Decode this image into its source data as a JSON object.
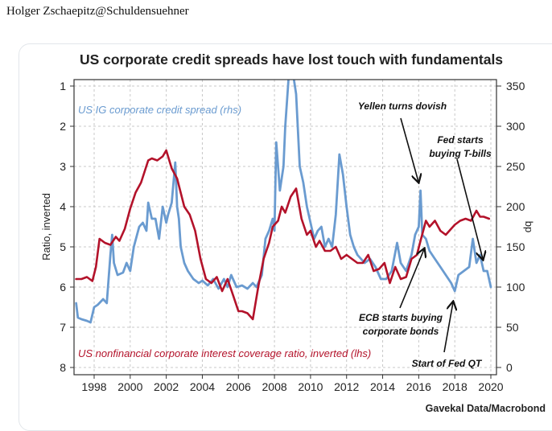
{
  "post": {
    "author": "Holger Zschaepitz@Schuldensuehner"
  },
  "chart_data": {
    "type": "line",
    "title": "US corporate credit spreads have lost touch with fundamentals",
    "xlabel": "",
    "ylabel_left": "Ratio, inverted",
    "ylabel_right": "bp",
    "xlim": [
      1996.9,
      2020.3
    ],
    "ylim_left": [
      1,
      8
    ],
    "ylim_left_inverted": true,
    "ylim_right": [
      0,
      350
    ],
    "x_ticks": [
      "1998",
      "2000",
      "2002",
      "2004",
      "2006",
      "2008",
      "2010",
      "2012",
      "2014",
      "2016",
      "2018",
      "2020"
    ],
    "y_left_ticks": [
      "1",
      "2",
      "3",
      "4",
      "5",
      "6",
      "7",
      "8"
    ],
    "y_right_ticks": [
      "0",
      "50",
      "100",
      "150",
      "200",
      "250",
      "300",
      "350"
    ],
    "grid": true,
    "colors": {
      "blue": "#6a9bd0",
      "red": "#b3122a"
    },
    "series": [
      {
        "name": "US IG corporate credit spread (rhs)",
        "axis": "right",
        "color": "#6a9bd0",
        "x": [
          1997.0,
          1997.1,
          1997.3,
          1997.6,
          1997.8,
          1998.0,
          1998.2,
          1998.5,
          1998.7,
          1998.9,
          1999.0,
          1999.1,
          1999.3,
          1999.6,
          1999.8,
          2000.0,
          2000.2,
          2000.5,
          2000.7,
          2000.9,
          2001.0,
          2001.2,
          2001.4,
          2001.6,
          2001.8,
          2002.0,
          2002.1,
          2002.3,
          2002.5,
          2002.6,
          2002.7,
          2002.8,
          2003.0,
          2003.2,
          2003.5,
          2003.8,
          2004.0,
          2004.3,
          2004.6,
          2004.9,
          2005.2,
          2005.4,
          2005.6,
          2005.9,
          2006.2,
          2006.5,
          2006.8,
          2007.0,
          2007.3,
          2007.5,
          2007.7,
          2007.9,
          2008.0,
          2008.1,
          2008.3,
          2008.5,
          2008.6,
          2008.8,
          2009.0,
          2009.2,
          2009.4,
          2009.6,
          2009.8,
          2010.0,
          2010.2,
          2010.4,
          2010.6,
          2010.8,
          2011.0,
          2011.2,
          2011.4,
          2011.6,
          2011.8,
          2012.0,
          2012.2,
          2012.4,
          2012.6,
          2012.8,
          2013.0,
          2013.3,
          2013.6,
          2013.9,
          2014.2,
          2014.5,
          2014.8,
          2015.0,
          2015.3,
          2015.6,
          2015.8,
          2016.0,
          2016.1,
          2016.2,
          2016.4,
          2016.6,
          2016.9,
          2017.2,
          2017.5,
          2017.8,
          2018.0,
          2018.2,
          2018.5,
          2018.8,
          2019.0,
          2019.2,
          2019.4,
          2019.6,
          2019.8,
          2020.0
        ],
        "values": [
          80,
          62,
          60,
          58,
          56,
          75,
          78,
          85,
          80,
          140,
          165,
          130,
          115,
          118,
          130,
          120,
          150,
          175,
          180,
          170,
          205,
          185,
          185,
          160,
          200,
          180,
          190,
          205,
          255,
          200,
          185,
          150,
          130,
          120,
          110,
          105,
          108,
          102,
          110,
          98,
          110,
          100,
          115,
          100,
          102,
          98,
          105,
          100,
          115,
          160,
          170,
          185,
          170,
          280,
          220,
          250,
          300,
          365,
          370,
          340,
          250,
          230,
          200,
          180,
          160,
          170,
          175,
          150,
          160,
          150,
          190,
          265,
          240,
          200,
          165,
          150,
          140,
          135,
          130,
          135,
          125,
          110,
          110,
          120,
          155,
          130,
          120,
          140,
          165,
          175,
          220,
          165,
          160,
          145,
          135,
          125,
          115,
          105,
          95,
          115,
          120,
          125,
          160,
          130,
          140,
          120,
          120,
          100
        ]
      },
      {
        "name": "US nonfinancial corporate interest coverage ratio, inverted (lhs)",
        "axis": "left",
        "color": "#b3122a",
        "x": [
          1997.0,
          1997.3,
          1997.6,
          1997.9,
          1998.1,
          1998.3,
          1998.6,
          1998.9,
          1999.2,
          1999.4,
          1999.7,
          2000.0,
          2000.3,
          2000.6,
          2001.0,
          2001.2,
          2001.5,
          2001.8,
          2002.0,
          2002.3,
          2002.6,
          2003.0,
          2003.3,
          2003.6,
          2003.9,
          2004.2,
          2004.5,
          2004.8,
          2005.1,
          2005.4,
          2005.7,
          2006.0,
          2006.2,
          2006.5,
          2006.8,
          2007.1,
          2007.4,
          2007.7,
          2007.9,
          2008.2,
          2008.4,
          2008.6,
          2008.9,
          2009.2,
          2009.5,
          2009.8,
          2010.0,
          2010.3,
          2010.5,
          2010.8,
          2011.1,
          2011.4,
          2011.7,
          2012.0,
          2012.3,
          2012.6,
          2012.9,
          2013.2,
          2013.5,
          2013.8,
          2014.1,
          2014.4,
          2014.7,
          2015.0,
          2015.3,
          2015.6,
          2015.9,
          2016.1,
          2016.4,
          2016.6,
          2016.9,
          2017.2,
          2017.5,
          2017.8,
          2018.0,
          2018.3,
          2018.6,
          2018.9,
          2019.2,
          2019.4,
          2019.6,
          2019.9
        ],
        "values": [
          5.8,
          5.8,
          5.75,
          5.85,
          5.5,
          4.8,
          4.9,
          4.95,
          4.75,
          4.85,
          4.55,
          4.05,
          3.65,
          3.4,
          2.85,
          2.8,
          2.85,
          2.75,
          2.6,
          3.05,
          3.3,
          4.0,
          4.2,
          4.6,
          5.3,
          5.8,
          5.9,
          5.75,
          6.1,
          5.8,
          6.2,
          6.6,
          6.6,
          6.65,
          6.8,
          6.0,
          5.3,
          4.9,
          4.5,
          4.35,
          4.0,
          4.15,
          3.75,
          3.55,
          4.3,
          4.7,
          4.6,
          5.0,
          4.85,
          5.1,
          5.1,
          5.0,
          5.3,
          5.2,
          5.3,
          5.4,
          5.4,
          5.2,
          5.6,
          5.55,
          5.4,
          5.9,
          5.5,
          5.8,
          5.75,
          5.3,
          5.2,
          4.85,
          4.35,
          4.5,
          4.35,
          4.6,
          4.7,
          4.55,
          4.45,
          4.35,
          4.3,
          4.35,
          4.1,
          4.25,
          4.25,
          4.3
        ]
      }
    ],
    "annotations": [
      {
        "text": "Yellen turns dovish",
        "points_to_year": 2016.1
      },
      {
        "text": "Fed starts buying T-bills",
        "lines": [
          "Fed starts",
          "buying T-bills"
        ],
        "points_to_year": 2019.6
      },
      {
        "text": "ECB starts buying corporate bonds",
        "lines": [
          "ECB starts buying",
          "corporate bonds"
        ],
        "points_to_year": 2016.4
      },
      {
        "text": "Start of Fed QT",
        "points_to_year": 2018.0
      }
    ],
    "series_labels": {
      "blue": "US IG corporate credit spread (rhs)",
      "red": "US nonfinancial corporate interest coverage ratio, inverted (lhs)"
    },
    "source": "Gavekal Data/Macrobond"
  }
}
